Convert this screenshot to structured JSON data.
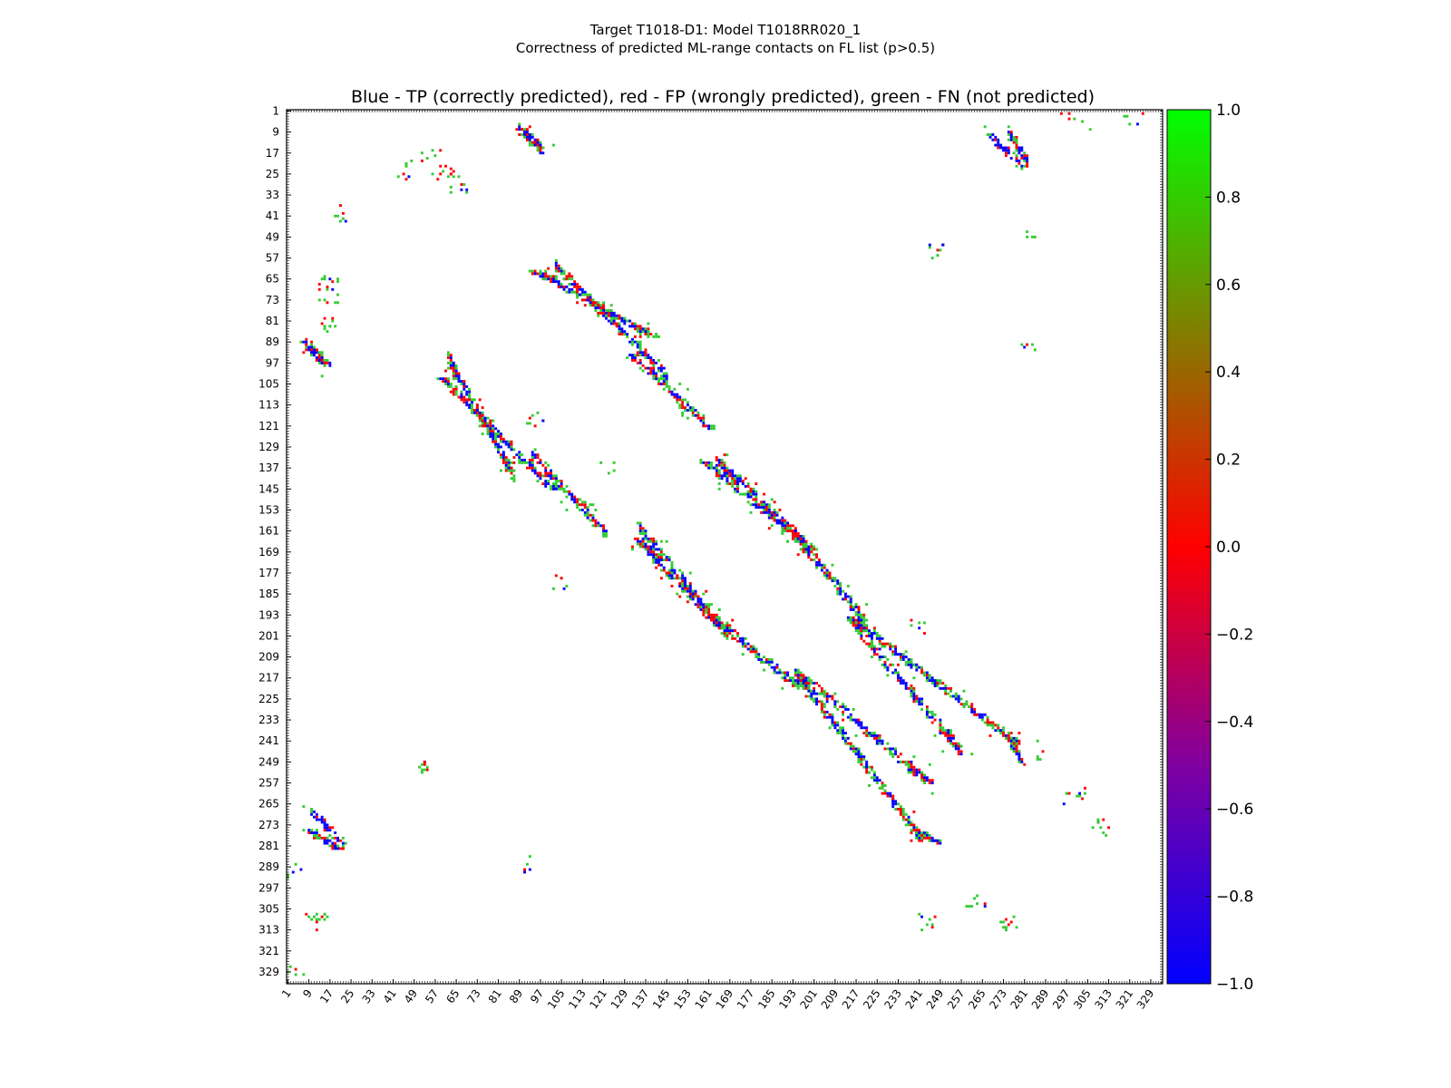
{
  "title_line1": "Target T1018-D1: Model T1018RR020_1",
  "title_line2": "Correctness of predicted ML-range contacts on FL list (p>0.5)",
  "chart_data": {
    "type": "heatmap",
    "title": "Blue - TP (correctly predicted), red - FP (wrongly predicted), green - FN (not predicted)",
    "xlabel": "",
    "ylabel": "",
    "x_range": [
      1,
      333
    ],
    "y_range": [
      1,
      333
    ],
    "x_ticks": [
      1,
      9,
      17,
      25,
      33,
      41,
      49,
      57,
      65,
      73,
      81,
      89,
      97,
      105,
      113,
      121,
      129,
      137,
      145,
      153,
      161,
      169,
      177,
      185,
      193,
      201,
      209,
      217,
      225,
      233,
      241,
      249,
      257,
      265,
      273,
      281,
      289,
      297,
      305,
      313,
      321,
      329
    ],
    "y_ticks": [
      1,
      9,
      17,
      25,
      33,
      41,
      49,
      57,
      65,
      73,
      81,
      89,
      97,
      105,
      113,
      121,
      129,
      137,
      145,
      153,
      161,
      169,
      177,
      185,
      193,
      201,
      209,
      217,
      225,
      233,
      241,
      249,
      257,
      265,
      273,
      281,
      289,
      297,
      305,
      313,
      321,
      329
    ],
    "colorbar": {
      "range": [
        -1.0,
        1.0
      ],
      "ticks": [
        "1.0",
        "0.8",
        "0.6",
        "0.4",
        "0.2",
        "0.0",
        "−0.2",
        "−0.4",
        "−0.6",
        "−0.8",
        "−1.0"
      ],
      "colors": {
        "top": "#00ff00",
        "upper_mid": "#808000",
        "mid": "#ff0000",
        "lower_mid": "#8000a0",
        "bottom": "#0000ff"
      }
    },
    "categories": {
      "TP": "#0000ff",
      "FP": "#ff0000",
      "FN": "#33cc33"
    },
    "diagonal_bands": [
      {
        "name": "band-top-right",
        "x0": 90,
        "y0": 8,
        "x1": 97,
        "y1": 15
      },
      {
        "name": "band-a",
        "x0": 95,
        "y0": 62,
        "x1": 140,
        "y1": 87
      },
      {
        "name": "band-b",
        "x0": 132,
        "y0": 94,
        "x1": 162,
        "y1": 122
      },
      {
        "name": "band-c",
        "x0": 60,
        "y0": 103,
        "x1": 102,
        "y1": 145
      },
      {
        "name": "band-d",
        "x0": 160,
        "y0": 135,
        "x1": 200,
        "y1": 168
      },
      {
        "name": "band-e",
        "x0": 134,
        "y0": 164,
        "x1": 165,
        "y1": 197
      },
      {
        "name": "band-f",
        "x0": 165,
        "y0": 196,
        "x1": 196,
        "y1": 221
      },
      {
        "name": "band-g",
        "x0": 195,
        "y0": 215,
        "x1": 245,
        "y1": 257
      },
      {
        "name": "band-h",
        "x0": 215,
        "y0": 194,
        "x1": 278,
        "y1": 242
      },
      {
        "name": "band-i",
        "x0": 8,
        "y0": 89,
        "x1": 16,
        "y1": 98
      },
      {
        "name": "band-j",
        "x0": 9,
        "y0": 275,
        "x1": 20,
        "y1": 282
      },
      {
        "name": "band-k",
        "x0": 240,
        "y0": 275,
        "x1": 248,
        "y1": 280
      },
      {
        "name": "band-l",
        "x0": 268,
        "y0": 10,
        "x1": 280,
        "y1": 22
      }
    ],
    "clusters": [
      {
        "x": 58,
        "y": 21,
        "n": 14,
        "spread": 6
      },
      {
        "x": 45,
        "y": 24,
        "n": 8,
        "spread": 4
      },
      {
        "x": 22,
        "y": 40,
        "n": 8,
        "spread": 3
      },
      {
        "x": 66,
        "y": 28,
        "n": 12,
        "spread": 4
      },
      {
        "x": 248,
        "y": 54,
        "n": 10,
        "spread": 3
      },
      {
        "x": 18,
        "y": 69,
        "n": 18,
        "spread": 5
      },
      {
        "x": 17,
        "y": 82,
        "n": 10,
        "spread": 3
      },
      {
        "x": 104,
        "y": 180,
        "n": 6,
        "spread": 4
      },
      {
        "x": 52,
        "y": 251,
        "n": 10,
        "spread": 2
      },
      {
        "x": 300,
        "y": 262,
        "n": 10,
        "spread": 4
      },
      {
        "x": 310,
        "y": 274,
        "n": 10,
        "spread": 3
      },
      {
        "x": 12,
        "y": 310,
        "n": 14,
        "spread": 4
      },
      {
        "x": 275,
        "y": 310,
        "n": 10,
        "spread": 3
      },
      {
        "x": 244,
        "y": 310,
        "n": 8,
        "spread": 4
      },
      {
        "x": 263,
        "y": 303,
        "n": 8,
        "spread": 4
      },
      {
        "x": 300,
        "y": 3,
        "n": 10,
        "spread": 6
      },
      {
        "x": 322,
        "y": 3,
        "n": 6,
        "spread": 4
      },
      {
        "x": 283,
        "y": 48,
        "n": 4,
        "spread": 2
      },
      {
        "x": 283,
        "y": 92,
        "n": 5,
        "spread": 3
      },
      {
        "x": 95,
        "y": 118,
        "n": 8,
        "spread": 4
      },
      {
        "x": 123,
        "y": 136,
        "n": 4,
        "spread": 3
      },
      {
        "x": 241,
        "y": 197,
        "n": 6,
        "spread": 3
      },
      {
        "x": 285,
        "y": 246,
        "n": 6,
        "spread": 6
      },
      {
        "x": 4,
        "y": 290,
        "n": 5,
        "spread": 3
      },
      {
        "x": 92,
        "y": 288,
        "n": 5,
        "spread": 3
      },
      {
        "x": 4,
        "y": 330,
        "n": 5,
        "spread": 3
      }
    ]
  }
}
